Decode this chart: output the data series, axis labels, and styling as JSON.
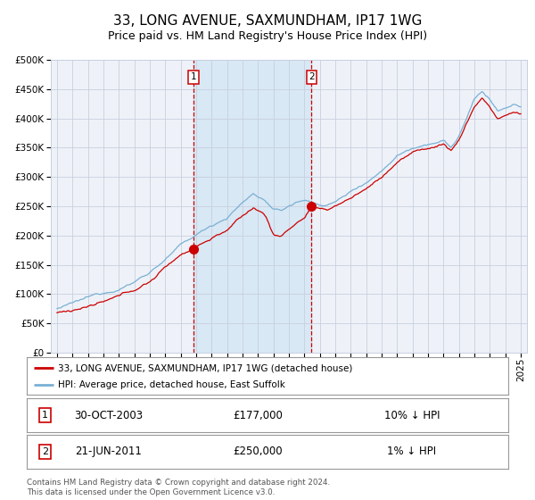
{
  "title": "33, LONG AVENUE, SAXMUNDHAM, IP17 1WG",
  "subtitle": "Price paid vs. HM Land Registry's House Price Index (HPI)",
  "legend_entries": [
    "33, LONG AVENUE, SAXMUNDHAM, IP17 1WG (detached house)",
    "HPI: Average price, detached house, East Suffolk"
  ],
  "annotation1_label": "1",
  "annotation1_date": "30-OCT-2003",
  "annotation1_price": 177000,
  "annotation1_note": "10% ↓ HPI",
  "annotation2_label": "2",
  "annotation2_date": "21-JUN-2011",
  "annotation2_price": 250000,
  "annotation2_note": "1% ↓ HPI",
  "footer": "Contains HM Land Registry data © Crown copyright and database right 2024.\nThis data is licensed under the Open Government Licence v3.0.",
  "line_color_red": "#cc0000",
  "line_color_blue": "#7ab0d4",
  "background_color": "#ffffff",
  "plot_bg_color": "#eef2f8",
  "shade_color": "#d8e8f4",
  "grid_color": "#c8cfe0",
  "ylim": [
    0,
    500000
  ],
  "yticks": [
    0,
    50000,
    100000,
    150000,
    200000,
    250000,
    300000,
    350000,
    400000,
    450000,
    500000
  ],
  "xlim_start": 1994.6,
  "xlim_end": 2025.4,
  "purchase1_x": 2003.83,
  "purchase2_x": 2011.47,
  "title_fontsize": 11,
  "subtitle_fontsize": 9,
  "axis_fontsize": 7.5
}
